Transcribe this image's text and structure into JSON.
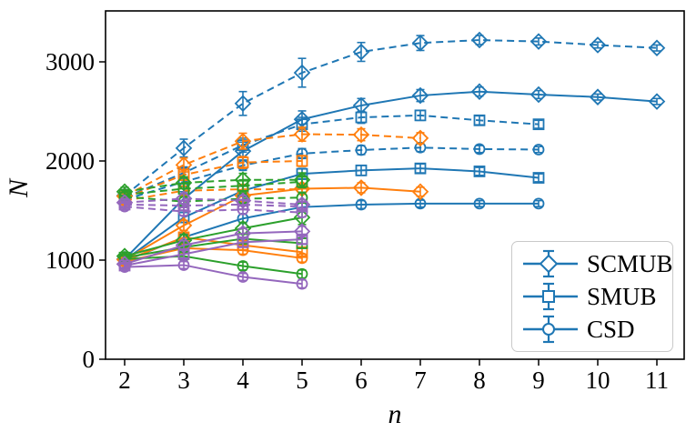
{
  "figure": {
    "xlabel": "n",
    "ylabel": "N",
    "x_ticks": [
      "2",
      "3",
      "4",
      "5",
      "6",
      "7",
      "8",
      "9",
      "10",
      "11"
    ],
    "y_ticks": [
      "0",
      "1000",
      "2000",
      "3000"
    ]
  },
  "legend": {
    "entries": [
      {
        "label": "SCMUB",
        "marker": "diamond"
      },
      {
        "label": "SMUB",
        "marker": "square"
      },
      {
        "label": "CSD",
        "marker": "circle"
      }
    ],
    "glyph_color": "#1f77b4"
  },
  "chart_data": {
    "type": "line",
    "title": "",
    "xlabel": "n",
    "ylabel": "N",
    "x_range": [
      2,
      11
    ],
    "xlim": [
      1.66,
      11.46
    ],
    "ylim": [
      0,
      3490
    ],
    "x_ticks": [
      2,
      3,
      4,
      5,
      6,
      7,
      8,
      9,
      10,
      11
    ],
    "y_ticks": [
      0,
      1000,
      2000,
      3000
    ],
    "grid": false,
    "legend_position": "lower right",
    "legend_maps_marker_to_method": {
      "SCMUB": "diamond",
      "SMUB": "square",
      "CSD": "circle"
    },
    "palette": {
      "blue": "#1f77b4",
      "orange": "#ff7f0e",
      "green": "#2ca02c",
      "purple": "#9467bd"
    },
    "series": [
      {
        "name": "SCMUB-blue-dashed",
        "color": "blue",
        "linestyle": "dashed",
        "marker": "diamond",
        "x": [
          2,
          3,
          4,
          5,
          6,
          7,
          8,
          9,
          10,
          11
        ],
        "y": [
          1650,
          2130,
          2580,
          2890,
          3100,
          3190,
          3220,
          3205,
          3170,
          3140
        ],
        "yerr": [
          60,
          90,
          120,
          145,
          95,
          75,
          45,
          35,
          30,
          30
        ]
      },
      {
        "name": "SCMUB-blue-solid",
        "color": "blue",
        "linestyle": "solid",
        "marker": "diamond",
        "x": [
          2,
          3,
          4,
          5,
          6,
          7,
          8,
          9,
          10,
          11
        ],
        "y": [
          1010,
          1620,
          2100,
          2420,
          2560,
          2660,
          2700,
          2670,
          2645,
          2600
        ],
        "yerr": [
          40,
          70,
          90,
          85,
          70,
          60,
          45,
          40,
          30,
          30
        ]
      },
      {
        "name": "SMUB-blue-dashed",
        "color": "blue",
        "linestyle": "dashed",
        "marker": "square",
        "x": [
          2,
          3,
          4,
          5,
          6,
          7,
          8,
          9
        ],
        "y": [
          1630,
          1880,
          2160,
          2370,
          2440,
          2460,
          2410,
          2370
        ],
        "yerr": [
          45,
          60,
          70,
          70,
          60,
          50,
          45,
          40
        ]
      },
      {
        "name": "SMUB-blue-solid",
        "color": "blue",
        "linestyle": "solid",
        "marker": "square",
        "x": [
          2,
          3,
          4,
          5,
          6,
          7,
          8,
          9
        ],
        "y": [
          1000,
          1430,
          1700,
          1870,
          1905,
          1925,
          1895,
          1830
        ],
        "yerr": [
          35,
          50,
          60,
          55,
          50,
          45,
          40,
          40
        ]
      },
      {
        "name": "CSD-blue-dashed",
        "color": "blue",
        "linestyle": "dashed",
        "marker": "circle",
        "x": [
          2,
          3,
          4,
          5,
          6,
          7,
          8,
          9
        ],
        "y": [
          1610,
          1790,
          1955,
          2075,
          2110,
          2135,
          2120,
          2115
        ],
        "yerr": [
          35,
          45,
          50,
          50,
          45,
          40,
          35,
          30
        ]
      },
      {
        "name": "CSD-blue-solid",
        "color": "blue",
        "linestyle": "solid",
        "marker": "circle",
        "x": [
          2,
          3,
          4,
          5,
          6,
          7,
          8,
          9
        ],
        "y": [
          990,
          1230,
          1420,
          1535,
          1560,
          1570,
          1570,
          1570
        ],
        "yerr": [
          30,
          40,
          45,
          45,
          40,
          35,
          30,
          30
        ]
      },
      {
        "name": "SCMUB-orange-dashed",
        "color": "orange",
        "linestyle": "dashed",
        "marker": "diamond",
        "x": [
          2,
          3,
          4,
          5,
          6,
          7
        ],
        "y": [
          1645,
          1960,
          2200,
          2270,
          2265,
          2230
        ],
        "yerr": [
          50,
          70,
          80,
          70,
          60,
          55
        ]
      },
      {
        "name": "SCMUB-orange-solid",
        "color": "orange",
        "linestyle": "solid",
        "marker": "diamond",
        "x": [
          2,
          3,
          4,
          5,
          6,
          7
        ],
        "y": [
          1005,
          1350,
          1650,
          1720,
          1730,
          1690
        ],
        "yerr": [
          35,
          50,
          60,
          55,
          50,
          45
        ]
      },
      {
        "name": "SMUB-orange-dashed",
        "color": "orange",
        "linestyle": "dashed",
        "marker": "square",
        "x": [
          2,
          3,
          4,
          5
        ],
        "y": [
          1625,
          1860,
          1985,
          2000
        ],
        "yerr": [
          45,
          55,
          60,
          55
        ]
      },
      {
        "name": "SMUB-orange-solid",
        "color": "orange",
        "linestyle": "solid",
        "marker": "square",
        "x": [
          2,
          3,
          4,
          5
        ],
        "y": [
          995,
          1230,
          1150,
          1080
        ],
        "yerr": [
          35,
          45,
          45,
          40
        ]
      },
      {
        "name": "CSD-orange-dashed",
        "color": "orange",
        "linestyle": "dashed",
        "marker": "circle",
        "x": [
          2,
          3,
          4,
          5
        ],
        "y": [
          1600,
          1700,
          1715,
          1715
        ],
        "yerr": [
          35,
          45,
          45,
          45
        ]
      },
      {
        "name": "CSD-orange-solid",
        "color": "orange",
        "linestyle": "solid",
        "marker": "circle",
        "x": [
          2,
          3,
          4,
          5
        ],
        "y": [
          985,
          1120,
          1100,
          1020
        ],
        "yerr": [
          30,
          40,
          40,
          40
        ]
      },
      {
        "name": "SCMUB-green-dashed",
        "color": "green",
        "linestyle": "dashed",
        "marker": "diamond",
        "x": [
          2,
          3,
          4,
          5
        ],
        "y": [
          1690,
          1780,
          1810,
          1810
        ],
        "yerr": [
          45,
          60,
          65,
          70
        ]
      },
      {
        "name": "SCMUB-green-solid",
        "color": "green",
        "linestyle": "solid",
        "marker": "diamond",
        "x": [
          2,
          3,
          4,
          5
        ],
        "y": [
          1040,
          1200,
          1320,
          1430
        ],
        "yerr": [
          40,
          55,
          60,
          70
        ]
      },
      {
        "name": "SMUB-green-dashed",
        "color": "green",
        "linestyle": "dashed",
        "marker": "square",
        "x": [
          2,
          3,
          4,
          5
        ],
        "y": [
          1660,
          1720,
          1750,
          1790
        ],
        "yerr": [
          40,
          55,
          60,
          60
        ]
      },
      {
        "name": "SMUB-green-solid",
        "color": "green",
        "linestyle": "solid",
        "marker": "square",
        "x": [
          2,
          3,
          4,
          5
        ],
        "y": [
          1025,
          1130,
          1215,
          1170
        ],
        "yerr": [
          35,
          45,
          50,
          50
        ]
      },
      {
        "name": "CSD-green-dashed",
        "color": "green",
        "linestyle": "dashed",
        "marker": "circle",
        "x": [
          2,
          3,
          4,
          5
        ],
        "y": [
          1640,
          1590,
          1620,
          1630
        ],
        "yerr": [
          40,
          50,
          55,
          55
        ]
      },
      {
        "name": "CSD-green-solid",
        "color": "green",
        "linestyle": "solid",
        "marker": "circle",
        "x": [
          2,
          3,
          4,
          5
        ],
        "y": [
          1010,
          1040,
          940,
          860
        ],
        "yerr": [
          30,
          40,
          40,
          40
        ]
      },
      {
        "name": "SCMUB-purple-dashed",
        "color": "purple",
        "linestyle": "dashed",
        "marker": "diamond",
        "x": [
          2,
          3,
          4,
          5
        ],
        "y": [
          1580,
          1620,
          1600,
          1560
        ],
        "yerr": [
          40,
          50,
          50,
          50
        ]
      },
      {
        "name": "SCMUB-purple-solid",
        "color": "purple",
        "linestyle": "solid",
        "marker": "diamond",
        "x": [
          2,
          3,
          4,
          5
        ],
        "y": [
          960,
          1150,
          1270,
          1290
        ],
        "yerr": [
          35,
          45,
          50,
          50
        ]
      },
      {
        "name": "SMUB-purple-dashed",
        "color": "purple",
        "linestyle": "dashed",
        "marker": "square",
        "x": [
          2,
          3,
          4,
          5
        ],
        "y": [
          1560,
          1550,
          1560,
          1540
        ],
        "yerr": [
          35,
          45,
          45,
          45
        ]
      },
      {
        "name": "SMUB-purple-solid",
        "color": "purple",
        "linestyle": "solid",
        "marker": "square",
        "x": [
          2,
          3,
          4,
          5
        ],
        "y": [
          945,
          1060,
          1180,
          1210
        ],
        "yerr": [
          30,
          40,
          45,
          45
        ]
      },
      {
        "name": "CSD-purple-dashed",
        "color": "purple",
        "linestyle": "dashed",
        "marker": "circle",
        "x": [
          2,
          3,
          4,
          5
        ],
        "y": [
          1540,
          1490,
          1510,
          1480
        ],
        "yerr": [
          35,
          40,
          45,
          45
        ]
      },
      {
        "name": "CSD-purple-solid",
        "color": "purple",
        "linestyle": "solid",
        "marker": "circle",
        "x": [
          2,
          3,
          4,
          5
        ],
        "y": [
          930,
          950,
          830,
          760
        ],
        "yerr": [
          30,
          35,
          35,
          40
        ]
      }
    ]
  }
}
